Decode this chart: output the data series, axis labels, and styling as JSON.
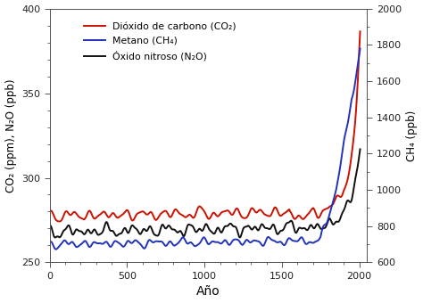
{
  "title": "",
  "xlabel": "Año",
  "ylabel_left": "CO₂ (ppm), N₂O (ppb)",
  "ylabel_right": "CH₄ (ppb)",
  "xlim": [
    0,
    2050
  ],
  "ylim_left": [
    250,
    400
  ],
  "ylim_right": [
    600,
    2000
  ],
  "xticks": [
    0,
    500,
    1000,
    1500,
    2000
  ],
  "yticks_left": [
    250,
    300,
    350,
    400
  ],
  "yticks_right": [
    600,
    800,
    1000,
    1200,
    1400,
    1600,
    1800,
    2000
  ],
  "legend": [
    {
      "label": "Dióxido de carbono (CO₂)",
      "color": "#cc1100",
      "lw": 1.4
    },
    {
      "label": "Metano (CH₄)",
      "color": "#2233bb",
      "lw": 1.4
    },
    {
      "label": "Óxido nitroso (N₂O)",
      "color": "#111111",
      "lw": 1.4
    }
  ],
  "background_color": "#ffffff",
  "co2_color": "#cc1100",
  "ch4_color": "#2233bb",
  "n2o_color": "#111111"
}
